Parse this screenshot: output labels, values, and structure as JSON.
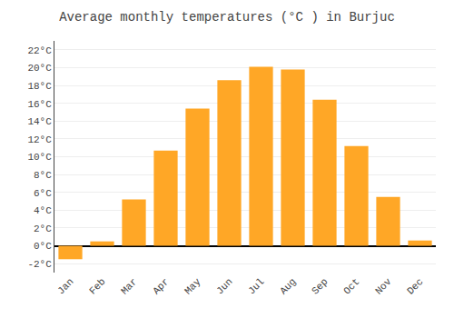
{
  "chart_data": {
    "type": "bar",
    "title": "Average monthly temperatures (°C ) in Burjuc",
    "categories": [
      "Jan",
      "Feb",
      "Mar",
      "Apr",
      "May",
      "Jun",
      "Jul",
      "Aug",
      "Sep",
      "Oct",
      "Nov",
      "Dec"
    ],
    "values": [
      -1.5,
      0.5,
      5.2,
      10.7,
      15.4,
      18.6,
      20.1,
      19.8,
      16.4,
      11.2,
      5.5,
      0.6
    ],
    "color": "#FFA726",
    "ylim": [
      -3,
      23
    ],
    "yticks": [
      {
        "value": -2,
        "label": "-2°C"
      },
      {
        "value": 0,
        "label": "0°C"
      },
      {
        "value": 2,
        "label": "2°C"
      },
      {
        "value": 4,
        "label": "4°C"
      },
      {
        "value": 6,
        "label": "6°C"
      },
      {
        "value": 8,
        "label": "8°C"
      },
      {
        "value": 10,
        "label": "10°C"
      },
      {
        "value": 12,
        "label": "12°C"
      },
      {
        "value": 14,
        "label": "14°C"
      },
      {
        "value": 16,
        "label": "16°C"
      },
      {
        "value": 18,
        "label": "18°C"
      },
      {
        "value": 20,
        "label": "20°C"
      },
      {
        "value": 22,
        "label": "22°C"
      }
    ],
    "grid": true
  }
}
